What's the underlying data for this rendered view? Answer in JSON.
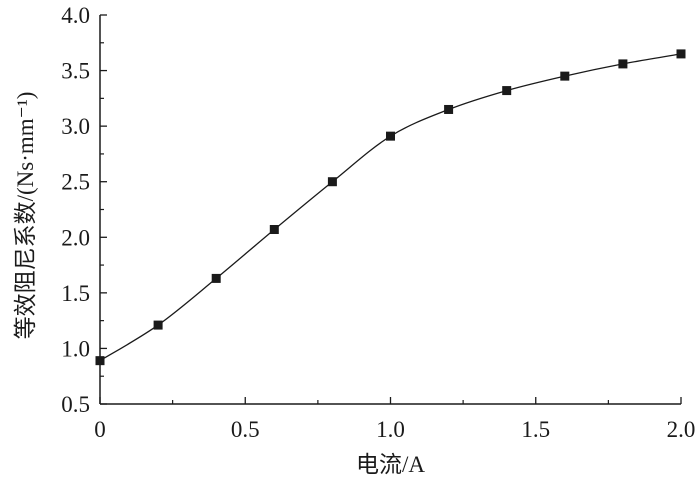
{
  "chart_data": {
    "type": "line",
    "title": "",
    "xlabel": "电流/A",
    "ylabel": "等效阻尼系数/(Ns·mm⁻¹)",
    "xlim": [
      0,
      2.0
    ],
    "ylim": [
      0.5,
      4.0
    ],
    "x_ticks": [
      "0",
      "0.5",
      "1.0",
      "1.5",
      "2.0"
    ],
    "y_ticks": [
      "0.5",
      "1.0",
      "1.5",
      "2.0",
      "2.5",
      "3.0",
      "3.5",
      "4.0"
    ],
    "grid": false,
    "marker": "square",
    "line_color": "#1a1a1a",
    "series": [
      {
        "x": [
          0,
          0.2,
          0.4,
          0.6,
          0.8,
          1.0,
          1.2,
          1.4,
          1.6,
          1.8,
          2.0
        ],
        "y": [
          0.89,
          1.21,
          1.63,
          2.07,
          2.5,
          2.91,
          3.15,
          3.32,
          3.45,
          3.56,
          3.65
        ]
      }
    ]
  }
}
